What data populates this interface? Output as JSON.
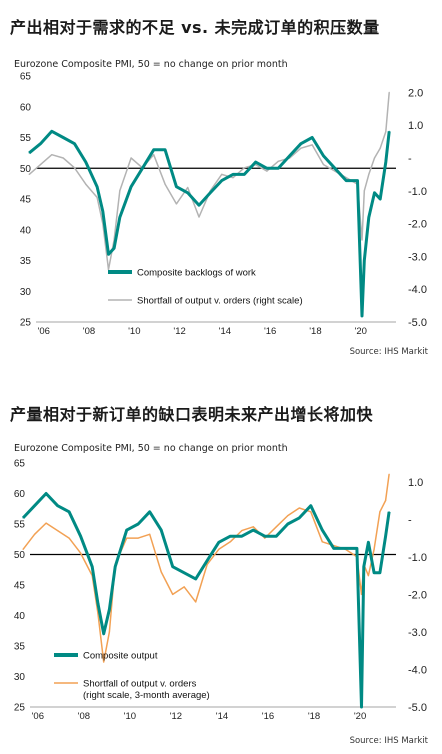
{
  "charts": [
    {
      "title": "产出相对于需求的不足 vs. 未完成订单的积压数量",
      "subtitle": "Eurozone Composite PMI, 50 = no change on prior month",
      "source": "Source: IHS Markit",
      "x_ticks": [
        "'06",
        "'08",
        "'10",
        "'12",
        "'14",
        "'16",
        "'18",
        "'20"
      ],
      "left_ticks": [
        "65",
        "60",
        "55",
        "50",
        "45",
        "40",
        "35",
        "30",
        "25"
      ],
      "right_ticks": [
        "2.0",
        "1.0",
        "-",
        "-1.0",
        "-2.0",
        "-3.0",
        "-4.0",
        "-5.0"
      ],
      "legend": [
        {
          "label": "Composite backlogs of work"
        },
        {
          "label": "Shortfall of output v. orders (right scale)"
        }
      ]
    },
    {
      "title": "产量相对于新订单的缺口表明未来产出增长将加快",
      "subtitle": "Eurozone Composite PMI, 50 = no change on prior month",
      "source": "Source: IHS Markit",
      "x_ticks": [
        "'06",
        "'08",
        "'10",
        "'12",
        "'14",
        "'16",
        "'18",
        "'20"
      ],
      "left_ticks": [
        "65",
        "60",
        "55",
        "50",
        "45",
        "40",
        "35",
        "30",
        "25"
      ],
      "right_ticks": [
        "1.0",
        "-",
        "-1.0",
        "-2.0",
        "-3.0",
        "-4.0",
        "-5.0"
      ],
      "legend": [
        {
          "label": "Composite output"
        },
        {
          "label": "Shortfall of output v. orders",
          "label2": "(right scale, 3-month average)"
        }
      ]
    }
  ],
  "chart_data": [
    {
      "type": "line",
      "x": [
        2005.5,
        2006.0,
        2006.5,
        2007.0,
        2007.5,
        2008.0,
        2008.5,
        2008.75,
        2009.0,
        2009.25,
        2009.5,
        2010.0,
        2010.5,
        2011.0,
        2011.5,
        2012.0,
        2012.5,
        2013.0,
        2013.5,
        2014.0,
        2014.5,
        2015.0,
        2015.5,
        2016.0,
        2016.5,
        2017.0,
        2017.5,
        2018.0,
        2018.5,
        2019.0,
        2019.5,
        2020.0,
        2020.2,
        2020.3,
        2020.5,
        2020.75,
        2021.0,
        2021.25,
        2021.4
      ],
      "ylim": [
        25,
        65
      ],
      "y2lim": [
        -5,
        2.5
      ],
      "series": [
        {
          "name": "Composite backlogs of work",
          "axis": "left",
          "color": "#008a84",
          "values": [
            52.5,
            54,
            56,
            55,
            54,
            51,
            47,
            43,
            36,
            37,
            42,
            47,
            50,
            53,
            53,
            47,
            46,
            44,
            46,
            48,
            49,
            49,
            51,
            50,
            50,
            52,
            54,
            55,
            52,
            50,
            48,
            48,
            26,
            35,
            42,
            46,
            45,
            51,
            56
          ]
        },
        {
          "name": "Shortfall of output v. orders (right scale)",
          "axis": "right",
          "color": "#b3b3b3",
          "values": [
            -0.5,
            -0.2,
            0.1,
            0.0,
            -0.3,
            -0.8,
            -1.2,
            -2.0,
            -3.4,
            -2.5,
            -1.0,
            0.0,
            -0.3,
            0.1,
            -0.8,
            -1.4,
            -0.9,
            -1.8,
            -1.0,
            -0.5,
            -0.6,
            -0.3,
            -0.2,
            -0.4,
            -0.1,
            0.0,
            0.3,
            0.4,
            -0.2,
            -0.4,
            -0.6,
            -0.8,
            -2.5,
            -1.0,
            -0.5,
            0.0,
            0.3,
            0.8,
            2.0
          ]
        }
      ]
    },
    {
      "type": "line",
      "x": [
        2005.5,
        2006.0,
        2006.5,
        2007.0,
        2007.5,
        2008.0,
        2008.5,
        2008.75,
        2009.0,
        2009.25,
        2009.5,
        2010.0,
        2010.5,
        2011.0,
        2011.5,
        2012.0,
        2012.5,
        2013.0,
        2013.5,
        2014.0,
        2014.5,
        2015.0,
        2015.5,
        2016.0,
        2016.5,
        2017.0,
        2017.5,
        2018.0,
        2018.5,
        2019.0,
        2019.5,
        2020.0,
        2020.2,
        2020.3,
        2020.5,
        2020.75,
        2021.0,
        2021.25,
        2021.4
      ],
      "ylim": [
        25,
        65
      ],
      "y2lim": [
        -5,
        1.5
      ],
      "series": [
        {
          "name": "Composite output",
          "axis": "left",
          "color": "#008a84",
          "values": [
            56,
            58,
            60,
            58,
            57,
            53,
            48,
            42,
            37,
            41,
            48,
            54,
            55,
            57,
            54,
            48,
            47,
            46,
            49,
            52,
            53,
            53,
            54,
            53,
            53,
            55,
            56,
            58,
            54,
            51,
            51,
            51,
            25,
            48,
            52,
            47,
            47,
            53,
            57
          ]
        },
        {
          "name": "Shortfall of output v. orders",
          "axis": "right",
          "color": "#f2a154",
          "values": [
            -0.8,
            -0.4,
            -0.1,
            -0.3,
            -0.5,
            -0.9,
            -1.5,
            -2.5,
            -3.8,
            -3.0,
            -1.2,
            -0.5,
            -0.5,
            -0.4,
            -1.4,
            -2.0,
            -1.8,
            -2.2,
            -1.2,
            -0.8,
            -0.6,
            -0.3,
            -0.2,
            -0.5,
            -0.2,
            0.1,
            0.3,
            0.2,
            -0.6,
            -0.7,
            -0.8,
            -1.0,
            -2.0,
            -1.2,
            -1.5,
            -0.8,
            0.2,
            0.5,
            1.2
          ]
        }
      ]
    }
  ]
}
